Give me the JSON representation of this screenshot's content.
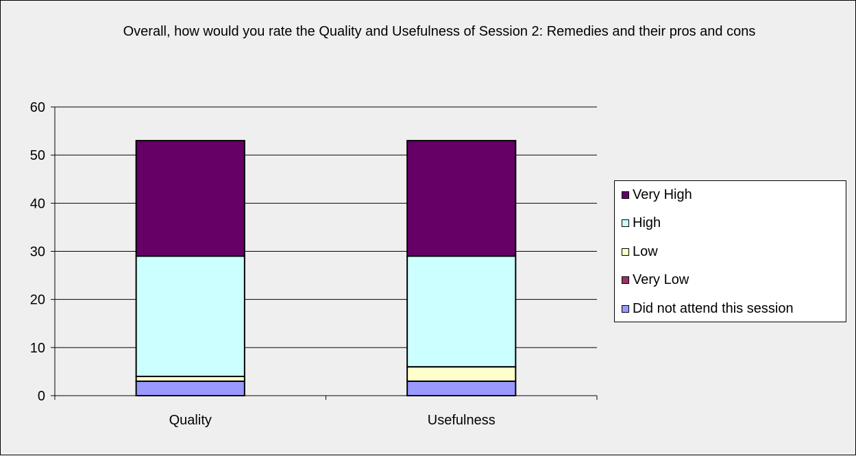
{
  "chart_data": {
    "type": "bar",
    "stacked": true,
    "title": "Overall, how would you rate the Quality and Usefulness of Session 2: Remedies and their pros and cons",
    "categories": [
      "Quality",
      "Usefulness"
    ],
    "series": [
      {
        "name": "Did not attend this session",
        "values": [
          3,
          3
        ],
        "color": "#9999ff"
      },
      {
        "name": "Very Low",
        "values": [
          0,
          0
        ],
        "color": "#993366"
      },
      {
        "name": "Low",
        "values": [
          1,
          3
        ],
        "color": "#ffffcc"
      },
      {
        "name": "High",
        "values": [
          25,
          23
        ],
        "color": "#ccffff"
      },
      {
        "name": "Very High",
        "values": [
          24,
          24
        ],
        "color": "#660066"
      }
    ],
    "ylim": [
      0,
      60
    ],
    "yticks": [
      "0",
      "10",
      "20",
      "30",
      "40",
      "50",
      "60"
    ],
    "grid": true,
    "legend_position": "right",
    "legend_order": [
      "Very High",
      "High",
      "Low",
      "Very Low",
      "Did not attend this session"
    ]
  }
}
